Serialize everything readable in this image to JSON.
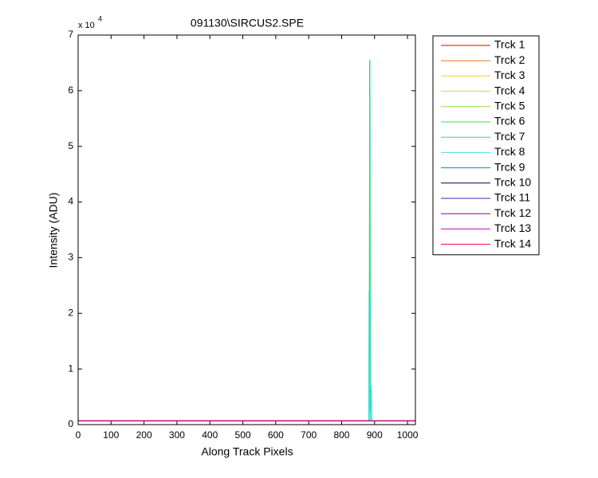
{
  "chart_data": {
    "type": "line",
    "title": "091130\\SIRCUS2.SPE",
    "x_label": "Along Track Pixels",
    "y_label": "Intensity (ADU)",
    "y_offset_text": "x 10",
    "y_offset_exponent": "4",
    "x": [
      0,
      880,
      882,
      883,
      884,
      885,
      886,
      887,
      888,
      890,
      892,
      1024
    ],
    "series": [
      {
        "name": "Trck 1",
        "color": "#e00000",
        "values": [
          700,
          700,
          700,
          700,
          700,
          700,
          700,
          700,
          700,
          700,
          700,
          700
        ]
      },
      {
        "name": "Trck 2",
        "color": "#f07020",
        "values": [
          700,
          700,
          700,
          700,
          700,
          700,
          700,
          700,
          700,
          700,
          700,
          700
        ]
      },
      {
        "name": "Trck 3",
        "color": "#f0d020",
        "values": [
          700,
          700,
          700,
          700,
          700,
          700,
          700,
          700,
          700,
          700,
          700,
          700
        ]
      },
      {
        "name": "Trck 4",
        "color": "#d0e020",
        "values": [
          700,
          700,
          700,
          700,
          700,
          700,
          700,
          700,
          700,
          700,
          700,
          700
        ]
      },
      {
        "name": "Trck 5",
        "color": "#90e040",
        "values": [
          700,
          700,
          700,
          700,
          700,
          700,
          700,
          700,
          700,
          700,
          700,
          700
        ]
      },
      {
        "name": "Trck 6",
        "color": "#40e040",
        "values": [
          700,
          700,
          700,
          700,
          3000,
          65500,
          65500,
          2000,
          700,
          700,
          700,
          700
        ]
      },
      {
        "name": "Trck 7",
        "color": "#20e090",
        "values": [
          700,
          700,
          700,
          700,
          2000,
          65000,
          65000,
          1500,
          700,
          700,
          700,
          700
        ]
      },
      {
        "name": "Trck 8",
        "color": "#40e0e0",
        "values": [
          700,
          700,
          700,
          24000,
          700,
          700,
          700,
          700,
          700,
          7000,
          700,
          700
        ]
      },
      {
        "name": "Trck 9",
        "color": "#2080c0",
        "values": [
          700,
          700,
          700,
          700,
          700,
          700,
          700,
          700,
          700,
          700,
          700,
          700
        ]
      },
      {
        "name": "Trck 10",
        "color": "#000060",
        "values": [
          700,
          700,
          700,
          700,
          700,
          700,
          700,
          700,
          700,
          700,
          700,
          700
        ]
      },
      {
        "name": "Trck 11",
        "color": "#4020c0",
        "values": [
          700,
          700,
          700,
          700,
          700,
          700,
          700,
          700,
          700,
          700,
          700,
          700
        ]
      },
      {
        "name": "Trck 12",
        "color": "#8000c0",
        "values": [
          700,
          700,
          700,
          700,
          700,
          700,
          700,
          700,
          700,
          700,
          700,
          700
        ]
      },
      {
        "name": "Trck 13",
        "color": "#d000d0",
        "values": [
          700,
          700,
          700,
          700,
          700,
          700,
          700,
          700,
          700,
          700,
          700,
          700
        ]
      },
      {
        "name": "Trck 14",
        "color": "#e00060",
        "values": [
          700,
          700,
          700,
          700,
          700,
          700,
          700,
          700,
          700,
          700,
          700,
          700
        ]
      }
    ],
    "xlim": [
      0,
      1024
    ],
    "xticks": [
      0,
      100,
      200,
      300,
      400,
      500,
      600,
      700,
      800,
      900,
      1000
    ],
    "ylim": [
      0,
      70000
    ],
    "yticks": [
      {
        "value": 0,
        "label": "0"
      },
      {
        "value": 10000,
        "label": "1"
      },
      {
        "value": 20000,
        "label": "2"
      },
      {
        "value": 30000,
        "label": "3"
      },
      {
        "value": 40000,
        "label": "4"
      },
      {
        "value": 50000,
        "label": "5"
      },
      {
        "value": 60000,
        "label": "6"
      },
      {
        "value": 70000,
        "label": "7"
      }
    ],
    "legend": "outside-right"
  }
}
